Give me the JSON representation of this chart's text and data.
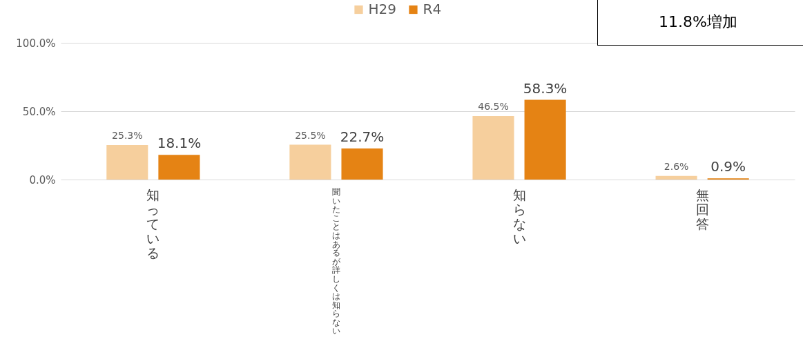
{
  "chart_data": {
    "type": "bar",
    "categories": [
      "知っている",
      "聞いたことはあるが詳しくは知らない",
      "知らない",
      "無回答"
    ],
    "series": [
      {
        "name": "H29",
        "color": "#f6cf9d",
        "values": [
          25.3,
          25.5,
          46.5,
          2.6
        ],
        "value_labels": [
          "25.3%",
          "25.5%",
          "46.5%",
          "2.6%"
        ]
      },
      {
        "name": "R4",
        "color": "#e58314",
        "values": [
          18.1,
          22.7,
          58.3,
          0.9
        ],
        "value_labels": [
          "18.1%",
          "22.7%",
          "58.3%",
          "0.9%"
        ]
      }
    ],
    "ylim": [
      0,
      100
    ],
    "yticks": [
      {
        "value": 0,
        "label": "0.0%"
      },
      {
        "value": 50,
        "label": "50.0%"
      },
      {
        "value": 100,
        "label": "100.0%"
      }
    ],
    "grid": "y",
    "legend": "top",
    "annotations": [
      "11.8%増加"
    ]
  }
}
